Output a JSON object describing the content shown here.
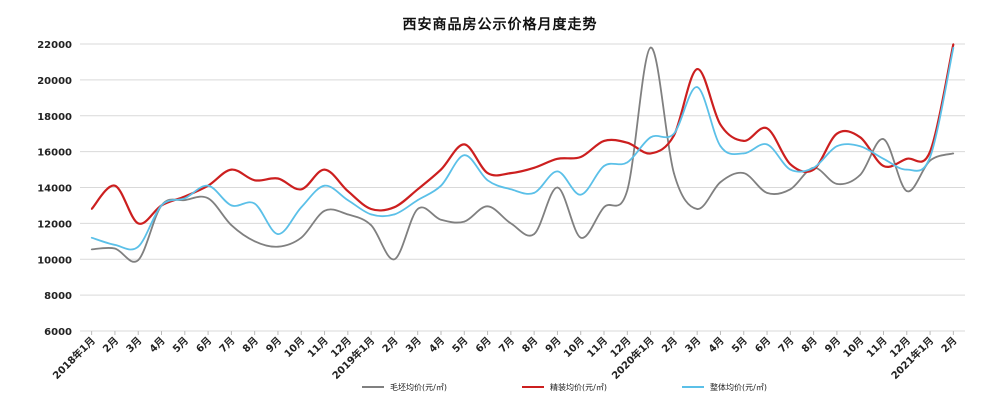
{
  "chart_data": {
    "type": "line",
    "title": "西安商品房公示价格月度走势",
    "xlabel": "",
    "ylabel": "",
    "ylim": [
      6000,
      22000
    ],
    "yticks": [
      "6000",
      "8000",
      "10000",
      "12000",
      "14000",
      "16000",
      "18000",
      "20000",
      "22000"
    ],
    "grid": true,
    "legend_position": "bottom",
    "categories": [
      "2018年1月",
      "2月",
      "3月",
      "4月",
      "5月",
      "6月",
      "7月",
      "8月",
      "9月",
      "10月",
      "11月",
      "12月",
      "2019年1月",
      "2月",
      "3月",
      "4月",
      "5月",
      "6月",
      "7月",
      "8月",
      "9月",
      "10月",
      "11月",
      "12月",
      "2020年1月",
      "2月",
      "3月",
      "4月",
      "5月",
      "6月",
      "7月",
      "8月",
      "9月",
      "10月",
      "11月",
      "12月",
      "2021年1月",
      "2月"
    ],
    "series": [
      {
        "name": "毛坯均价(元/㎡)",
        "color": "#808080",
        "values": [
          10550,
          10600,
          9950,
          13000,
          13300,
          13400,
          11900,
          11000,
          10700,
          11200,
          12700,
          12500,
          11900,
          10000,
          12800,
          12200,
          12100,
          12950,
          12000,
          11400,
          14000,
          11200,
          12900,
          13850,
          21800,
          14800,
          12800,
          14300,
          14800,
          13700,
          13900,
          15100,
          14200,
          14700,
          16700,
          13800,
          15500,
          15900
        ]
      },
      {
        "name": "精装均价(元/㎡)",
        "color": "#cc1f1f",
        "values": [
          12800,
          14100,
          12000,
          13000,
          13500,
          14100,
          15000,
          14400,
          14500,
          13900,
          15000,
          13800,
          12800,
          12900,
          13900,
          15000,
          16400,
          14800,
          14800,
          15100,
          15600,
          15700,
          16600,
          16500,
          15900,
          16900,
          20600,
          17500,
          16600,
          17300,
          15300,
          15000,
          17000,
          16800,
          15200,
          15600,
          16000,
          22000
        ]
      },
      {
        "name": "整体均价(元/㎡)",
        "color": "#5bc0e8",
        "values": [
          11200,
          10800,
          10700,
          13000,
          13400,
          14100,
          13000,
          13100,
          11400,
          12900,
          14100,
          13300,
          12500,
          12500,
          13300,
          14100,
          15800,
          14400,
          13900,
          13700,
          14900,
          13600,
          15200,
          15400,
          16800,
          17000,
          19600,
          16300,
          15900,
          16400,
          15000,
          15100,
          16300,
          16300,
          15600,
          15000,
          15700,
          21800
        ]
      }
    ]
  }
}
